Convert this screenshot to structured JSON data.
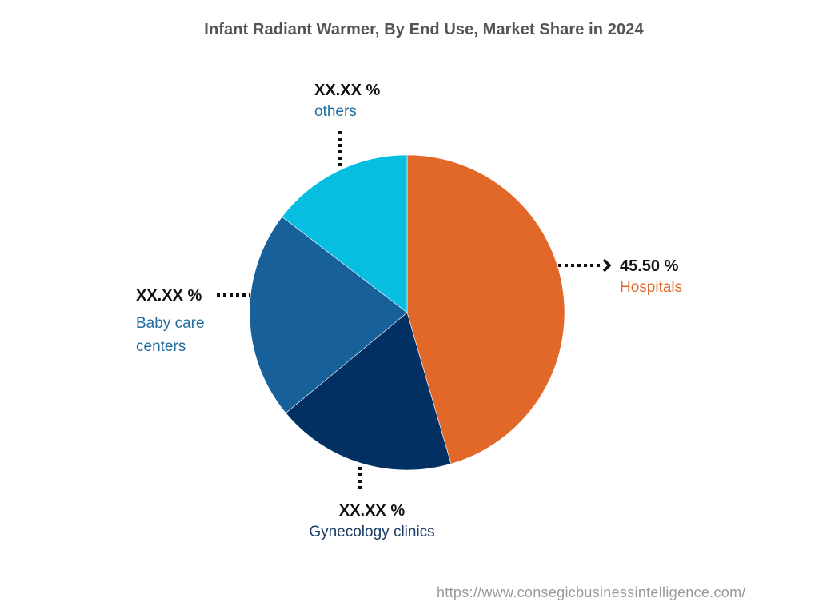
{
  "title": "Infant Radiant Warmer, By End Use, Market Share in 2024",
  "footer": {
    "url": "https://www.consegicbusinessintelligence.com/"
  },
  "labels": {
    "hospitals": {
      "value": "45.50 %",
      "name": "Hospitals",
      "color": "#E0692B"
    },
    "gynecology": {
      "value": "XX.XX %",
      "name": "Gynecology clinics",
      "color": "#1A3C66"
    },
    "baby_care": {
      "value": "XX.XX %",
      "name_line1": "Baby care",
      "name_line2": "centers",
      "color": "#1F6DA0"
    },
    "others": {
      "value": "XX.XX %",
      "name": "others",
      "color": "#1F6DA0"
    }
  },
  "chart_data": {
    "type": "pie",
    "title": "Infant Radiant Warmer, By End Use, Market Share in 2024",
    "start_angle": "12 o'clock, clockwise",
    "categories": [
      "Hospitals",
      "Gynecology clinics",
      "Baby care centers",
      "others"
    ],
    "values": [
      45.5,
      18.5,
      21.4,
      14.6
    ],
    "value_labels": [
      "45.50 %",
      "XX.XX %",
      "XX.XX %",
      "XX.XX %"
    ],
    "values_note": "Only Hospitals (45.50%) is labeled; others estimated from slice angles",
    "colors": [
      "#E2682A",
      "#033063",
      "#17609A",
      "#06BFE0"
    ],
    "legend": "none (direct labels with dotted leader lines)",
    "center": [
      509,
      391
    ],
    "radius": 197
  }
}
